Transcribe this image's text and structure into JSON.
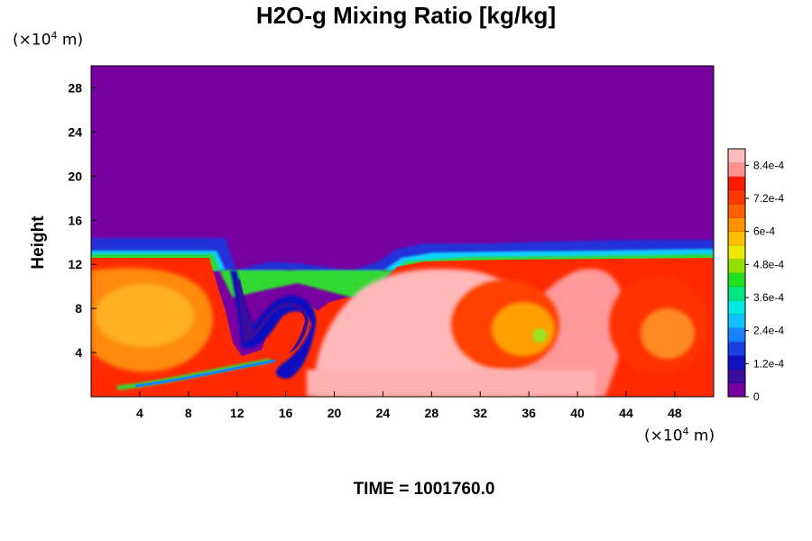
{
  "title": "H2O-g Mixing Ratio [kg/kg]",
  "y_unit": {
    "prefix": "(×10",
    "exp": "4",
    "suffix": " m)"
  },
  "x_unit": {
    "prefix": "(×10",
    "exp": "4",
    "suffix": " m)"
  },
  "time_label": "TIME = 1001760.0",
  "colors": {
    "background_top": "#7700a0",
    "palette": [
      "#7700a0",
      "#3a0c9e",
      "#1010c0",
      "#1a40e0",
      "#1a80ff",
      "#10c0ff",
      "#00e8e0",
      "#00e880",
      "#20e020",
      "#90e000",
      "#e8e800",
      "#ffc000",
      "#ff9000",
      "#ff6000",
      "#ff3800",
      "#ff1800",
      "#ff9090",
      "#ffbcbc"
    ]
  },
  "chart_data": {
    "type": "heatmap",
    "title": "H2O-g Mixing Ratio [kg/kg]",
    "ylabel": "Height",
    "xlabel": "",
    "x_ticks": [
      4,
      8,
      12,
      16,
      20,
      24,
      28,
      32,
      36,
      40,
      44,
      48
    ],
    "y_ticks": [
      4,
      8,
      12,
      16,
      20,
      24,
      28
    ],
    "xlim": [
      0,
      51.2
    ],
    "ylim": [
      0,
      30
    ],
    "colorbar": {
      "min": 0,
      "max": 0.0009,
      "ticks": [
        {
          "value": 0,
          "label": "0"
        },
        {
          "value": 0.00012,
          "label": "1.2e-4"
        },
        {
          "value": 0.00024,
          "label": "2.4e-4"
        },
        {
          "value": 0.00036,
          "label": "3.6e-4"
        },
        {
          "value": 0.00048,
          "label": "4.8e-4"
        },
        {
          "value": 0.0006,
          "label": "6e-4"
        },
        {
          "value": 0.00072,
          "label": "7.2e-4"
        },
        {
          "value": 0.00084,
          "label": "8.4e-4"
        }
      ]
    },
    "field_summary": {
      "dry_layer_above_height": 13.5,
      "moist_layer_top_height": 12.5,
      "dry_intrusion_x_range": [
        11,
        23
      ]
    }
  }
}
